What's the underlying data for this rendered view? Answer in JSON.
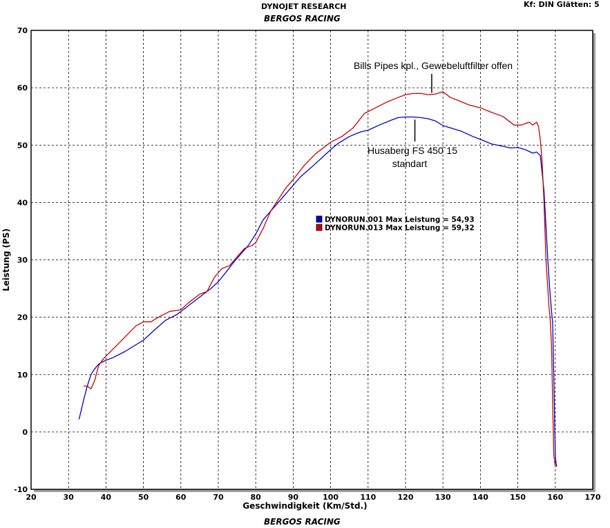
{
  "header": {
    "title": "DYNOJET RESEARCH",
    "subtitle": "BERGOS RACING",
    "settings": "Kf: DIN  Glätten: 5",
    "footer": "BERGOS RACING"
  },
  "chart_data": {
    "type": "line",
    "xlabel": "Geschwindigkeit (Km/Std.)",
    "ylabel": "Leistung (PS)",
    "xlim": [
      20,
      170
    ],
    "ylim": [
      -10,
      70
    ],
    "xticks": [
      20,
      30,
      40,
      50,
      60,
      70,
      80,
      90,
      100,
      110,
      120,
      130,
      140,
      150,
      160,
      170
    ],
    "yticks": [
      -10,
      0,
      10,
      20,
      30,
      40,
      50,
      60,
      70
    ],
    "grid": true,
    "grid_style": "dashed",
    "legend_position": "center",
    "legend": [
      {
        "label": "DYNORUN.001 Max Leistung = 54,93",
        "color": "#0000c8"
      },
      {
        "label": "DYNORUN.013 Max Leistung = 59,32",
        "color": "#c80000"
      }
    ],
    "series": [
      {
        "name": "DYNORUN.001",
        "color": "#0000c8",
        "x": [
          32.8,
          34,
          35,
          36,
          37,
          38,
          39,
          40,
          42,
          45,
          48,
          50,
          53,
          56,
          59,
          62,
          65,
          68,
          70,
          72,
          74,
          76,
          78,
          80,
          82,
          84,
          86,
          88,
          90,
          92,
          95,
          98,
          100,
          102,
          105,
          108,
          110,
          113,
          116,
          118,
          120,
          122,
          124,
          126,
          128,
          130,
          132,
          135,
          138,
          140,
          143,
          146,
          148,
          150,
          152,
          154,
          155,
          155.5,
          156,
          157,
          158,
          158.5,
          159,
          159.3,
          159.6,
          160,
          160.2,
          160.4
        ],
        "y": [
          2.2,
          5.5,
          8,
          10,
          11,
          11.8,
          12.2,
          12.5,
          13,
          14,
          15.2,
          16,
          17.8,
          19.5,
          20.5,
          22,
          23.5,
          25,
          26.2,
          27.8,
          29.5,
          31,
          32.5,
          34.5,
          37,
          38.5,
          40,
          41.5,
          43,
          44.5,
          46.2,
          48,
          49.2,
          50.3,
          51.5,
          52.3,
          52.6,
          53.5,
          54.3,
          54.8,
          54.9,
          54.9,
          54.8,
          54.6,
          54.2,
          53.4,
          53.0,
          52.4,
          51.5,
          51.0,
          50.2,
          49.8,
          49.5,
          49.6,
          49.2,
          48.6,
          48.8,
          48.5,
          48.2,
          42,
          30,
          25,
          21,
          19,
          10,
          -4,
          -5.5,
          -6
        ]
      },
      {
        "name": "DYNORUN.013",
        "color": "#c80000",
        "x": [
          34,
          35,
          36,
          37,
          38,
          39,
          40,
          42,
          45,
          48,
          50,
          52,
          54,
          57,
          60,
          62,
          65,
          67,
          69,
          71,
          73,
          75,
          77,
          79,
          80,
          82,
          84,
          86,
          88,
          90,
          93,
          96,
          100,
          103,
          106,
          109,
          112,
          115,
          118,
          120,
          122,
          124,
          126,
          128,
          130,
          132,
          134,
          137,
          140,
          143,
          146,
          149,
          151,
          153,
          154,
          155,
          155.5,
          156,
          156.5,
          157,
          157.5,
          158,
          158.3,
          158.6,
          159,
          159.3,
          159.6,
          160
        ],
        "y": [
          8,
          8,
          7.5,
          9,
          11.5,
          12.5,
          13.2,
          14.5,
          16.5,
          18.5,
          19.2,
          19.2,
          20,
          21,
          21.3,
          22.5,
          24,
          24.5,
          27,
          28.5,
          29,
          30.5,
          32,
          32.5,
          33,
          35.5,
          38.5,
          40.5,
          42.5,
          44,
          46.5,
          48.5,
          50.5,
          51.5,
          53,
          55.5,
          56.5,
          57.5,
          58.3,
          58.8,
          59.0,
          59.0,
          58.8,
          58.9,
          59.3,
          58.3,
          57.8,
          57.0,
          56.5,
          55.7,
          55.0,
          53.5,
          53.5,
          54.0,
          53.5,
          54.0,
          53.3,
          51,
          47,
          40,
          30,
          25,
          22,
          20,
          15,
          5,
          -4,
          -6
        ]
      }
    ],
    "annotations": [
      {
        "text": "Bills Pipes kpl., Gewebeluftfilter offen",
        "x": 127,
        "y": 59
      },
      {
        "text": "Husaberg FS 450`15",
        "x": 122.5,
        "y": 54.8
      },
      {
        "text": "standart",
        "x": 122.5,
        "y": 54.8
      }
    ]
  }
}
